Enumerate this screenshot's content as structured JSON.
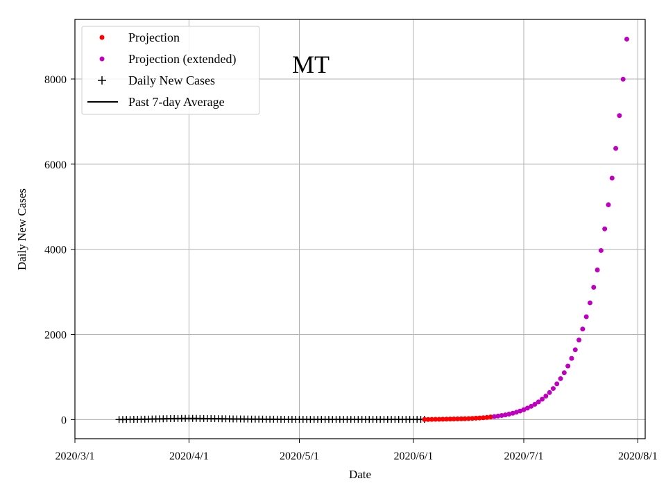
{
  "chart_data": {
    "type": "scatter",
    "title": "MT",
    "xlabel": "Date",
    "ylabel": "Daily New Cases",
    "xlim": [
      "2020-03-01",
      "2020-08-03"
    ],
    "ylim": [
      -450,
      9400
    ],
    "x_ticks": [
      {
        "date": "2020-03-01",
        "label": "2020/3/1"
      },
      {
        "date": "2020-04-01",
        "label": "2020/4/1"
      },
      {
        "date": "2020-05-01",
        "label": "2020/5/1"
      },
      {
        "date": "2020-06-01",
        "label": "2020/6/1"
      },
      {
        "date": "2020-07-01",
        "label": "2020/7/1"
      },
      {
        "date": "2020-08-01",
        "label": "2020/8/1"
      }
    ],
    "y_ticks": [
      0,
      2000,
      4000,
      6000,
      8000
    ],
    "grid": true,
    "legend_position": "top-left",
    "series": [
      {
        "name": "Projection",
        "kind": "dots",
        "color": "#ff0000",
        "start_date": "2020-06-04",
        "values": [
          1,
          2,
          3,
          5,
          6,
          8,
          10,
          12,
          14,
          16,
          18,
          20,
          23,
          27,
          32,
          37,
          43,
          50,
          60
        ]
      },
      {
        "name": "Projection (extended)",
        "kind": "dots",
        "color": "#bf00bf",
        "start_date": "2020-06-23",
        "values": [
          70,
          82,
          95,
          110,
          128,
          148,
          172,
          200,
          232,
          268,
          310,
          358,
          414,
          478,
          551,
          634,
          729,
          838,
          961,
          1100,
          1258,
          1437,
          1639,
          1868,
          2126,
          2416,
          2742,
          3107,
          3515,
          3971,
          4479,
          5044,
          5672,
          6369,
          7141,
          7995,
          8937
        ]
      },
      {
        "name": "Daily New Cases",
        "kind": "plus",
        "color": "#000000",
        "start_date": "2020-03-13",
        "values": [
          1,
          2,
          3,
          4,
          5,
          6,
          7,
          8,
          10,
          12,
          14,
          16,
          18,
          20,
          22,
          24,
          25,
          26,
          27,
          28,
          27,
          26,
          25,
          24,
          23,
          22,
          21,
          20,
          19,
          18,
          17,
          15,
          14,
          13,
          12,
          11,
          10,
          10,
          9,
          9,
          8,
          8,
          7,
          7,
          6,
          6,
          6,
          5,
          5,
          5,
          5,
          4,
          4,
          4,
          4,
          4,
          3,
          3,
          3,
          3,
          3,
          3,
          3,
          3,
          3,
          3,
          3,
          3,
          3,
          3,
          3,
          3,
          3,
          3,
          3,
          3,
          3,
          3,
          3,
          3,
          3,
          3,
          3,
          3
        ]
      },
      {
        "name": "Past 7-day Average",
        "kind": "line",
        "color": "#000000",
        "start_date": "2020-03-13",
        "values": [
          1,
          2,
          3,
          4,
          5,
          6,
          7,
          8,
          10,
          12,
          14,
          16,
          18,
          20,
          22,
          24,
          25,
          26,
          27,
          27,
          27,
          26,
          25,
          24,
          23,
          22,
          21,
          20,
          19,
          18,
          17,
          15,
          14,
          13,
          12,
          11,
          10,
          10,
          9,
          9,
          8,
          8,
          7,
          7,
          6,
          6,
          6,
          5,
          5,
          5,
          5,
          4,
          4,
          4,
          4,
          4,
          3,
          3,
          3,
          3,
          3,
          3,
          3,
          3,
          3,
          3,
          3,
          3,
          3,
          3,
          3,
          3,
          3,
          3,
          3,
          3,
          3,
          3,
          3,
          3,
          3,
          3,
          3,
          3
        ]
      }
    ]
  }
}
